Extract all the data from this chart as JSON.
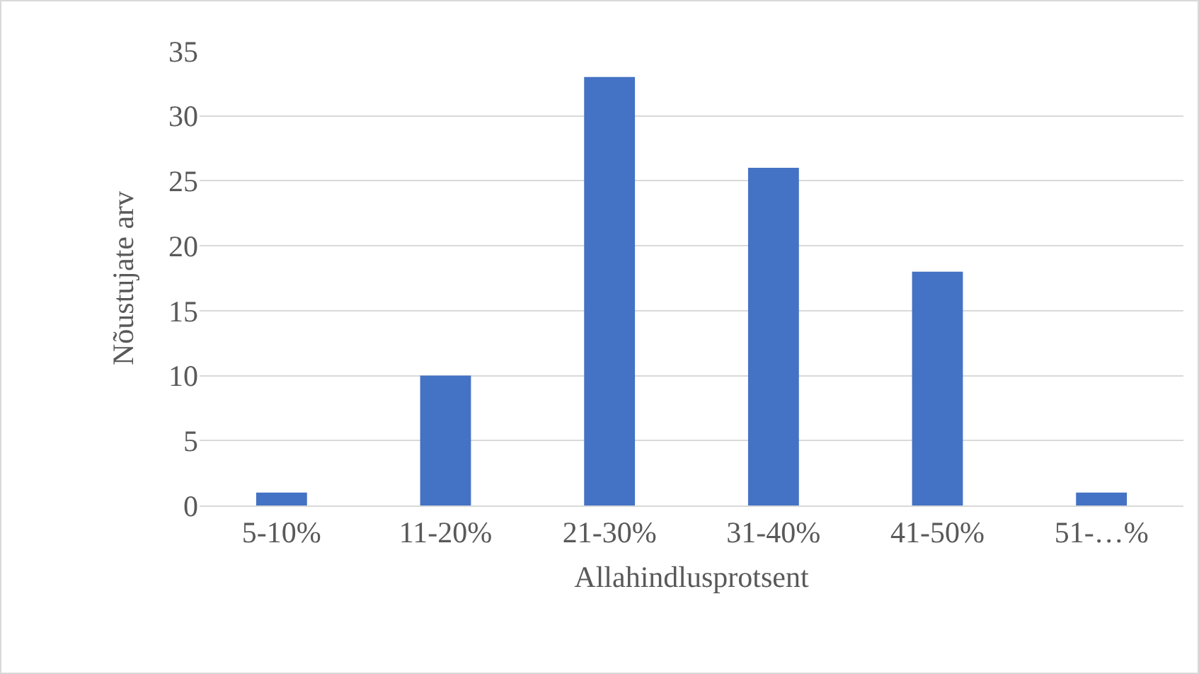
{
  "chart_data": {
    "type": "bar",
    "xlabel": "Allahindlusprotsent",
    "ylabel": "Nõustujate arv",
    "categories": [
      "5-10%",
      "11-20%",
      "21-30%",
      "31-40%",
      "41-50%",
      "51-…%"
    ],
    "values": [
      1,
      10,
      33,
      26,
      18,
      1
    ],
    "color": "#4472c4",
    "ylim": [
      0,
      35
    ],
    "yticks": [
      0,
      5,
      10,
      15,
      20,
      25,
      30,
      35
    ],
    "grid": "y"
  }
}
